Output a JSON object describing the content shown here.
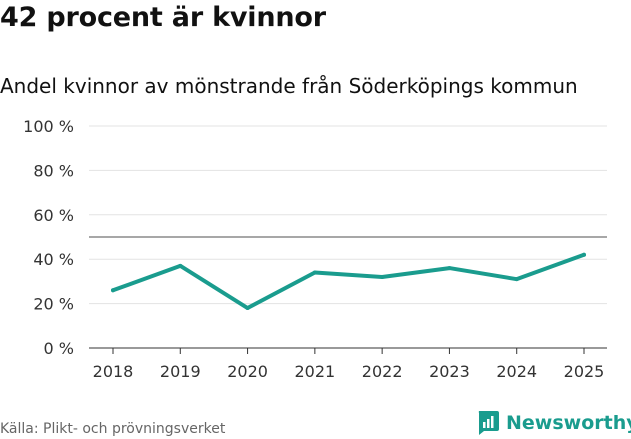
{
  "header": {
    "title": "42 procent är kvinnor",
    "subtitle": "Andel kvinnor av mönstrande från Söderköpings kommun"
  },
  "footer": {
    "source": "Källa: Plikt- och prövningsverket",
    "brand_name": "Newsworthy",
    "brand_icon": "newsworthy-logo-icon",
    "brand_color": "#1a9c8e"
  },
  "chart_data": {
    "type": "line",
    "title": "42 procent är kvinnor",
    "subtitle": "Andel kvinnor av mönstrande från Söderköpings kommun",
    "xlabel": "",
    "ylabel": "",
    "categories": [
      "2018",
      "2019",
      "2020",
      "2021",
      "2022",
      "2023",
      "2024",
      "2025"
    ],
    "series": [
      {
        "name": "Andel kvinnor",
        "values": [
          26,
          37,
          18,
          34,
          32,
          36,
          31,
          42
        ],
        "color": "#1a9c8e"
      }
    ],
    "ylim": [
      0,
      100
    ],
    "yticks": [
      0,
      20,
      40,
      60,
      80,
      100
    ],
    "ytick_labels": [
      "0 %",
      "20 %",
      "40 %",
      "60 %",
      "80 %",
      "100 %"
    ],
    "reference_line": 50,
    "grid": true,
    "legend": "none"
  }
}
